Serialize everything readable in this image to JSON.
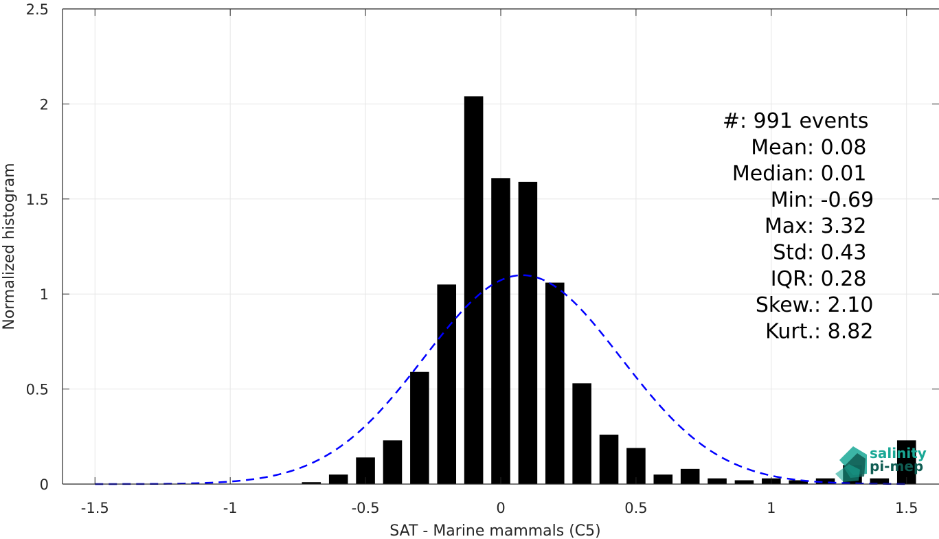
{
  "colors": {
    "bars": "#000000",
    "fit_curve": "#0000ff",
    "grid": "#e6e6e6",
    "axis": "#262626",
    "logo_teal": "#1aa896",
    "logo_dark": "#0f5c52"
  },
  "stats": [
    {
      "label": "#  ",
      "sep": ": ",
      "value": "991 events"
    },
    {
      "label": "Mean ",
      "sep": ": ",
      "value": "0.08"
    },
    {
      "label": "Median ",
      "sep": ": ",
      "value": "0.01"
    },
    {
      "label": "Min ",
      "sep": ": ",
      "value": "-0.69"
    },
    {
      "label": "Max ",
      "sep": ": ",
      "value": "3.32"
    },
    {
      "label": "Std ",
      "sep": ": ",
      "value": "0.43"
    },
    {
      "label": "IQR ",
      "sep": ": ",
      "value": "0.28"
    },
    {
      "label": "Skew. ",
      "sep": ": ",
      "value": "2.10"
    },
    {
      "label": "Kurt. ",
      "sep": ": ",
      "value": "8.82"
    }
  ],
  "logo": {
    "line1": "salinity",
    "line2": "pi-mep",
    "icon": "salinity-pimep-logo-icon"
  },
  "chart_data": {
    "type": "bar",
    "title": "",
    "xlabel": "SAT - Marine mammals (C5)",
    "ylabel": "Normalized histogram",
    "xlim": [
      -1.62,
      1.62
    ],
    "ylim": [
      0,
      2.5
    ],
    "x_ticks": [
      -1.5,
      -1,
      -0.5,
      0,
      0.5,
      1,
      1.5
    ],
    "x_tick_labels": [
      "-1.5",
      "-1",
      "-0.5",
      "0",
      "0.5",
      "1",
      "1.5"
    ],
    "y_ticks": [
      0,
      0.5,
      1,
      1.5,
      2,
      2.5
    ],
    "y_tick_labels": [
      "0",
      "0.5",
      "1",
      "1.5",
      "2",
      "2.5"
    ],
    "grid": true,
    "bin_width": 0.1,
    "bar_width": 0.07,
    "series": [
      {
        "type": "bar",
        "x": [
          -0.7,
          -0.6,
          -0.5,
          -0.4,
          -0.3,
          -0.2,
          -0.1,
          0.0,
          0.1,
          0.2,
          0.3,
          0.4,
          0.5,
          0.6,
          0.7,
          0.8,
          0.9,
          1.0,
          1.1,
          1.2,
          1.3,
          1.4,
          1.5
        ],
        "values": [
          0.01,
          0.05,
          0.14,
          0.23,
          0.59,
          1.05,
          2.04,
          1.61,
          1.59,
          1.06,
          0.53,
          0.26,
          0.19,
          0.05,
          0.08,
          0.03,
          0.02,
          0.03,
          0.02,
          0.03,
          0.1,
          0.03,
          0.23
        ]
      },
      {
        "type": "line",
        "style": "dashed",
        "fit": "normal",
        "mean": 0.08,
        "std": 0.363,
        "x_range": [
          -1.5,
          1.5
        ]
      }
    ]
  }
}
